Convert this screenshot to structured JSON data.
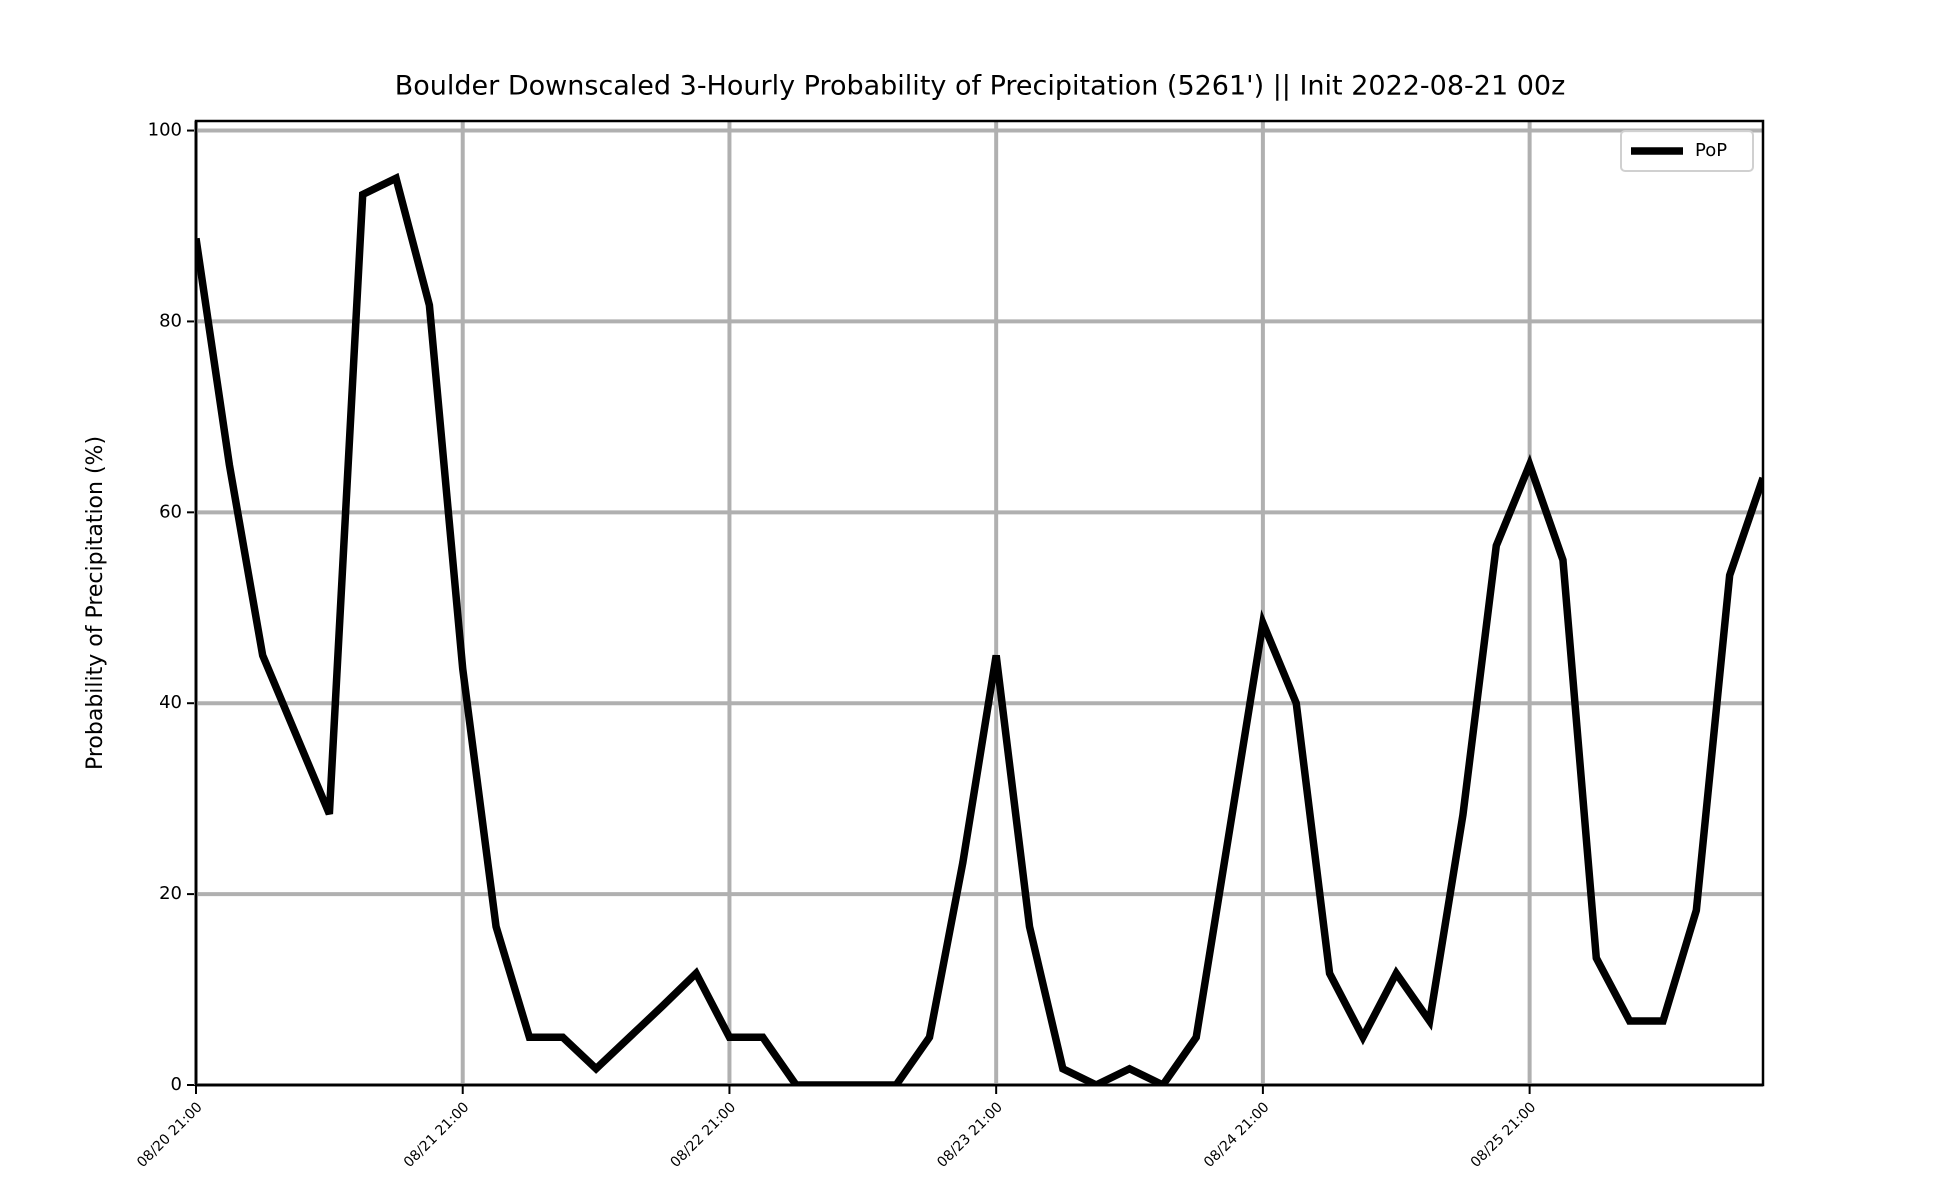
{
  "chart_data": {
    "type": "line",
    "title": "Boulder Downscaled 3-Hourly Probability of Precipitation (5261') || Init 2022-08-21 00z",
    "y_label": "Probability of Precipitation (%)",
    "x": [
      "08/20 21:00",
      "08/21 00:00",
      "08/21 03:00",
      "08/21 06:00",
      "08/21 09:00",
      "08/21 12:00",
      "08/21 15:00",
      "08/21 18:00",
      "08/21 21:00",
      "08/22 00:00",
      "08/22 03:00",
      "08/22 06:00",
      "08/22 09:00",
      "08/22 12:00",
      "08/22 15:00",
      "08/22 18:00",
      "08/22 21:00",
      "08/23 00:00",
      "08/23 03:00",
      "08/23 06:00",
      "08/23 09:00",
      "08/23 12:00",
      "08/23 15:00",
      "08/23 18:00",
      "08/23 21:00",
      "08/24 00:00",
      "08/24 03:00",
      "08/24 06:00",
      "08/24 09:00",
      "08/24 12:00",
      "08/24 15:00",
      "08/24 18:00",
      "08/24 21:00",
      "08/25 00:00",
      "08/25 03:00",
      "08/25 06:00",
      "08/25 09:00",
      "08/25 12:00",
      "08/25 15:00",
      "08/25 18:00",
      "08/25 21:00",
      "08/26 00:00",
      "08/26 03:00",
      "08/26 06:00",
      "08/26 09:00",
      "08/26 12:00",
      "08/26 15:00",
      "08/26 18:00"
    ],
    "series": [
      {
        "name": "PoP",
        "color": "#000000",
        "values": [
          88.7,
          65,
          45,
          36.7,
          28.4,
          93.3,
          95,
          81.7,
          43.6,
          16.6,
          5,
          5,
          1.7,
          5,
          8.3,
          11.7,
          5,
          5,
          0,
          0,
          0,
          0,
          5,
          23.3,
          45,
          16.6,
          1.7,
          0,
          1.7,
          0,
          5,
          26.7,
          48.4,
          40,
          11.7,
          5,
          11.7,
          6.7,
          28.3,
          56.5,
          65,
          55,
          13.3,
          6.7,
          6.7,
          18.3,
          53.4,
          63.6
        ]
      }
    ],
    "xlim": [
      "08/20 21:00",
      "08/26 18:00"
    ],
    "xticks": [
      "08/20 21:00",
      "08/21 21:00",
      "08/22 21:00",
      "08/23 21:00",
      "08/24 21:00",
      "08/25 21:00"
    ],
    "ylim": [
      0,
      101
    ],
    "yticks": [
      0,
      20,
      40,
      60,
      80,
      100
    ],
    "grid": true,
    "legend": "upper right"
  }
}
